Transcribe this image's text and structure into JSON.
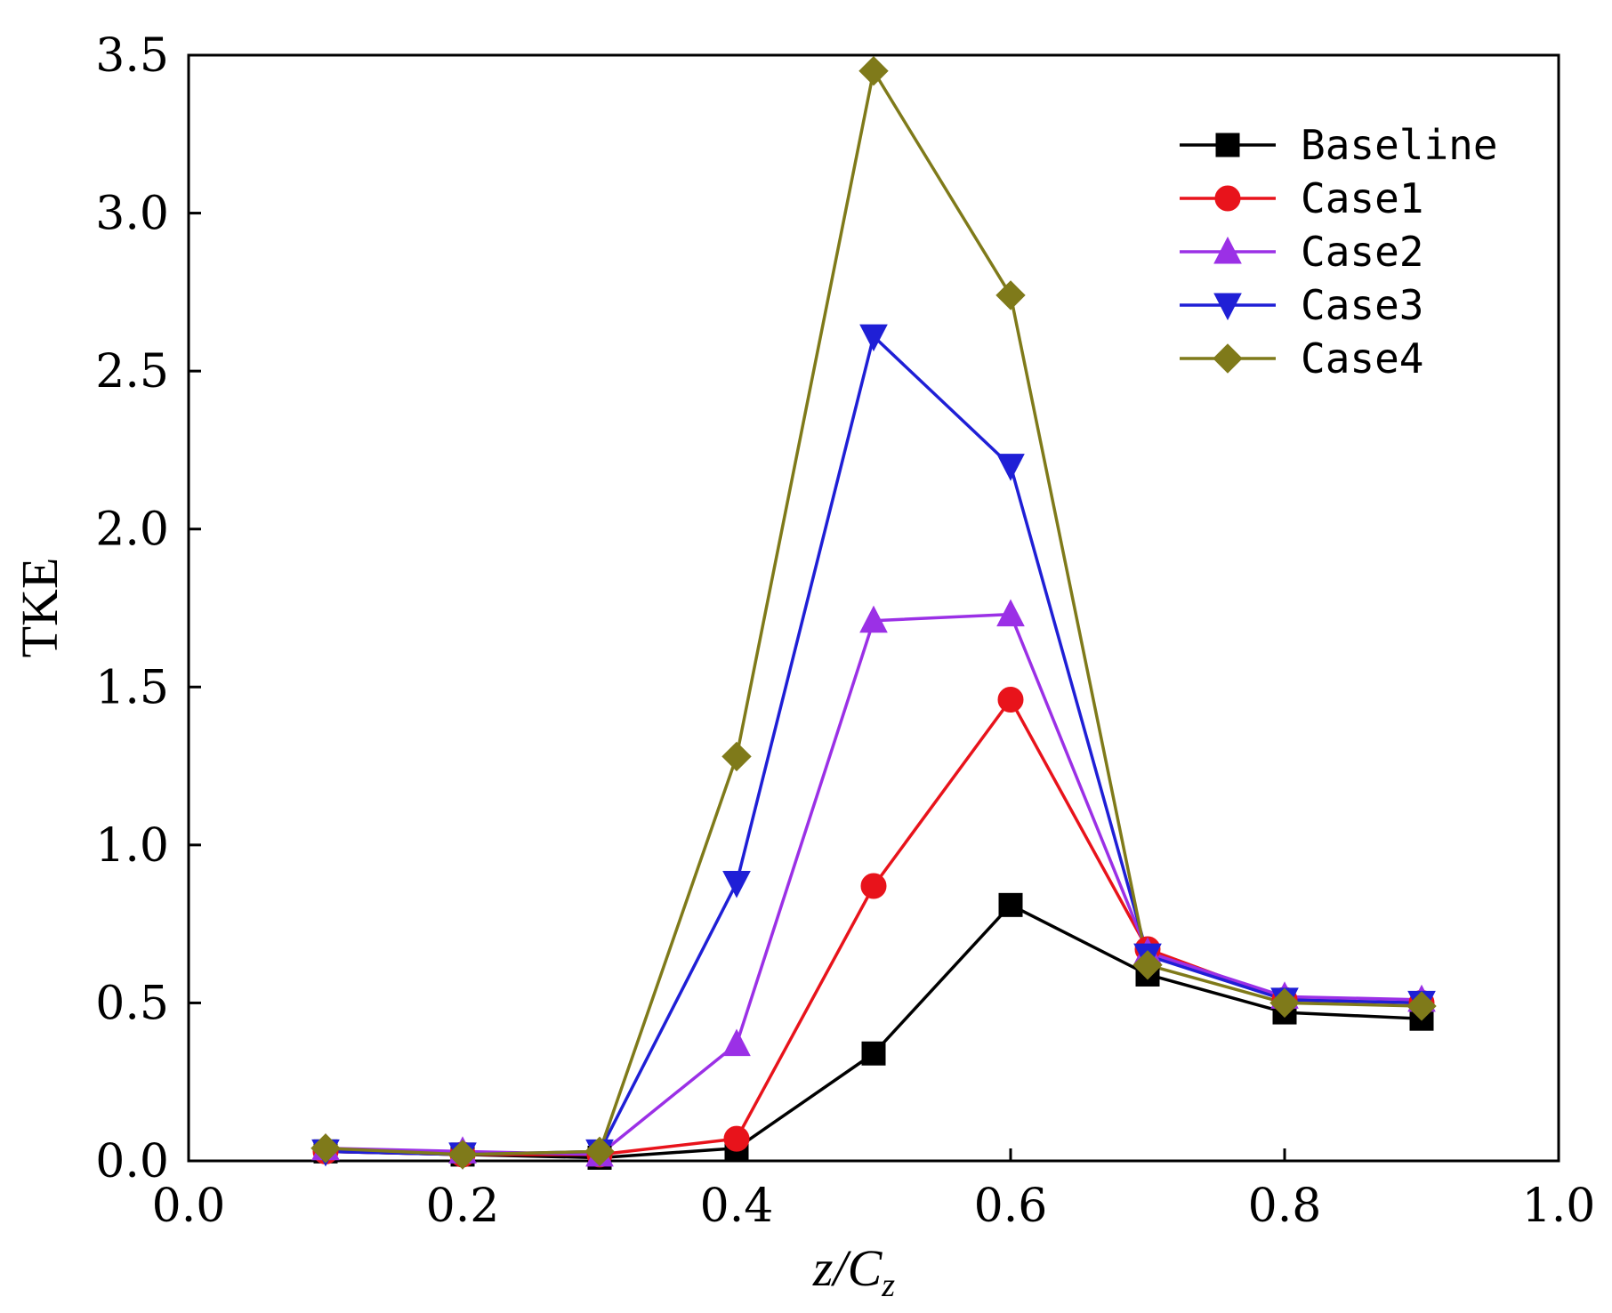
{
  "chart_data": {
    "type": "line",
    "title": "",
    "xlabel": {
      "main": "z/C",
      "sub": "z"
    },
    "ylabel": "TKE",
    "xlim": [
      0.0,
      1.0
    ],
    "ylim": [
      0.0,
      3.5
    ],
    "x_ticks": [
      "0.0",
      "0.2",
      "0.4",
      "0.6",
      "0.8",
      "1.0"
    ],
    "y_ticks": [
      "0.0",
      "0.5",
      "1.0",
      "1.5",
      "2.0",
      "2.5",
      "3.0",
      "3.5"
    ],
    "grid": false,
    "legend_position": "top-right",
    "x": [
      0.1,
      0.2,
      0.3,
      0.4,
      0.5,
      0.6,
      0.7,
      0.8,
      0.9
    ],
    "series": [
      {
        "name": "Baseline",
        "color": "#000000",
        "marker": "square",
        "values": [
          0.03,
          0.02,
          0.01,
          0.04,
          0.34,
          0.81,
          0.59,
          0.47,
          0.45
        ]
      },
      {
        "name": "Case1",
        "color": "#e8131b",
        "marker": "circle",
        "values": [
          0.03,
          0.02,
          0.02,
          0.07,
          0.87,
          1.46,
          0.67,
          0.51,
          0.5
        ]
      },
      {
        "name": "Case2",
        "color": "#9b30e6",
        "marker": "triangle-up",
        "values": [
          0.04,
          0.03,
          0.02,
          0.37,
          1.71,
          1.73,
          0.66,
          0.52,
          0.51
        ]
      },
      {
        "name": "Case3",
        "color": "#1f1fd6",
        "marker": "triangle-down",
        "values": [
          0.03,
          0.02,
          0.03,
          0.88,
          2.61,
          2.2,
          0.65,
          0.51,
          0.5
        ]
      },
      {
        "name": "Case4",
        "color": "#7f7a1a",
        "marker": "diamond",
        "values": [
          0.04,
          0.02,
          0.03,
          1.28,
          3.45,
          2.74,
          0.62,
          0.5,
          0.49
        ]
      }
    ]
  }
}
